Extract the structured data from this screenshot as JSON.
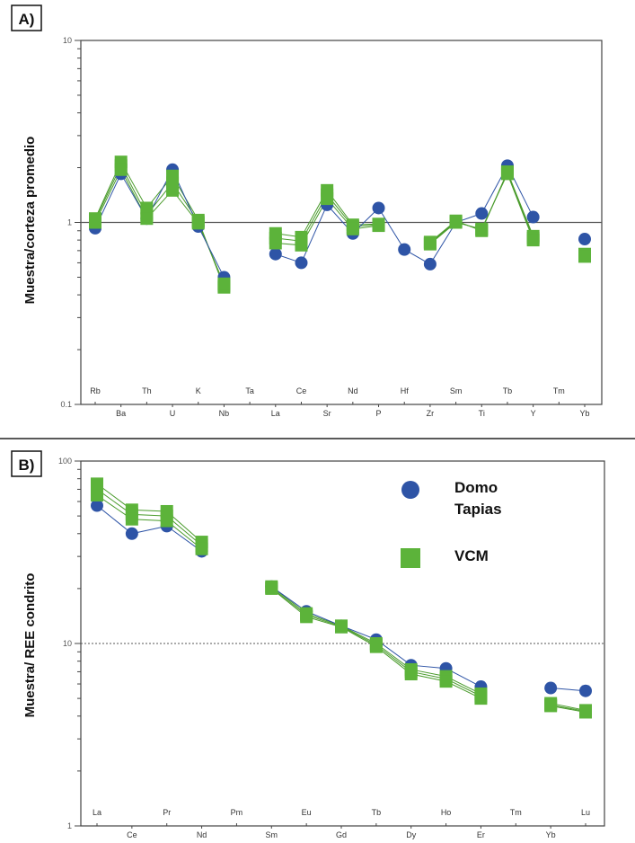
{
  "colors": {
    "domo": "#2e54a6",
    "vcm": "#5cb33a",
    "vcm_line": "#4a9b2c",
    "axis": "#444444",
    "ref_line": "#555555"
  },
  "legend": {
    "domo": "Domo Tapias",
    "vcm": "VCM"
  },
  "chart_data": [
    {
      "type": "line",
      "panel_label": "A)",
      "title": "",
      "xlabel": "",
      "ylabel": "Muestra/corteza promedio",
      "yscale": "log",
      "ylim": [
        0.1,
        10
      ],
      "yticks": [
        "0.1",
        "1",
        "10"
      ],
      "reference_line": 1,
      "reference_style": "solid",
      "categories": [
        "Rb",
        "Ba",
        "Th",
        "U",
        "K",
        "Nb",
        "Ta",
        "La",
        "Ce",
        "Sr",
        "Nd",
        "P",
        "Hf",
        "Zr",
        "Sm",
        "Ti",
        "Tb",
        "Y",
        "Tm",
        "Yb"
      ],
      "series": [
        {
          "name": "Domo Tapias",
          "marker": "circle",
          "values": [
            0.93,
            1.85,
            1.05,
            1.95,
            0.95,
            0.5,
            null,
            0.67,
            0.6,
            1.25,
            0.87,
            1.2,
            0.71,
            0.59,
            1.0,
            1.12,
            2.05,
            1.07,
            null,
            0.81
          ]
        },
        {
          "name": "VCM",
          "marker": "square",
          "values": [
            1.05,
            2.15,
            1.2,
            1.8,
            1.03,
            0.44,
            null,
            0.87,
            0.83,
            1.5,
            0.97,
            0.98,
            null,
            0.78,
            1.02,
            0.9,
            1.9,
            0.84,
            null,
            0.67
          ]
        },
        {
          "name": "VCM",
          "marker": "square",
          "values": [
            1.03,
            2.05,
            1.1,
            1.65,
            1.01,
            0.45,
            null,
            0.82,
            0.79,
            1.42,
            0.95,
            0.97,
            null,
            0.77,
            1.01,
            0.91,
            1.88,
            0.82,
            null,
            0.66
          ]
        },
        {
          "name": "VCM",
          "marker": "square",
          "values": [
            1.0,
            1.95,
            1.05,
            1.5,
            0.99,
            0.46,
            null,
            0.77,
            0.75,
            1.35,
            0.92,
            0.96,
            null,
            0.76,
            1.0,
            0.92,
            1.85,
            0.8,
            null,
            0.65
          ]
        }
      ]
    },
    {
      "type": "line",
      "panel_label": "B)",
      "title": "",
      "xlabel": "",
      "ylabel": "Muestra/ REE condrito",
      "yscale": "log",
      "ylim": [
        1,
        100
      ],
      "yticks": [
        "1",
        "10",
        "100"
      ],
      "reference_line": 10,
      "reference_style": "dotted",
      "categories": [
        "La",
        "Ce",
        "Pr",
        "Nd",
        "Pm",
        "Sm",
        "Eu",
        "Gd",
        "Tb",
        "Dy",
        "Ho",
        "Er",
        "Tm",
        "Yb",
        "Lu"
      ],
      "series": [
        {
          "name": "Domo Tapias",
          "marker": "circle",
          "values": [
            57,
            40,
            44,
            32,
            null,
            20.5,
            15,
            12.5,
            10.5,
            7.6,
            7.3,
            5.8,
            null,
            5.7,
            5.5
          ]
        },
        {
          "name": "VCM",
          "marker": "square",
          "values": [
            75,
            54,
            53,
            36,
            null,
            20.5,
            14.6,
            12.5,
            10,
            7.2,
            6.6,
            5.3,
            null,
            4.7,
            4.3
          ]
        },
        {
          "name": "VCM",
          "marker": "square",
          "values": [
            70,
            51,
            50,
            34.5,
            null,
            20.2,
            14.3,
            12.4,
            9.8,
            7.0,
            6.4,
            5.15,
            null,
            4.6,
            4.25
          ]
        },
        {
          "name": "VCM",
          "marker": "square",
          "values": [
            65,
            48,
            47,
            33,
            null,
            20,
            14,
            12.3,
            9.6,
            6.8,
            6.2,
            5.0,
            null,
            4.55,
            4.2
          ]
        }
      ]
    }
  ]
}
